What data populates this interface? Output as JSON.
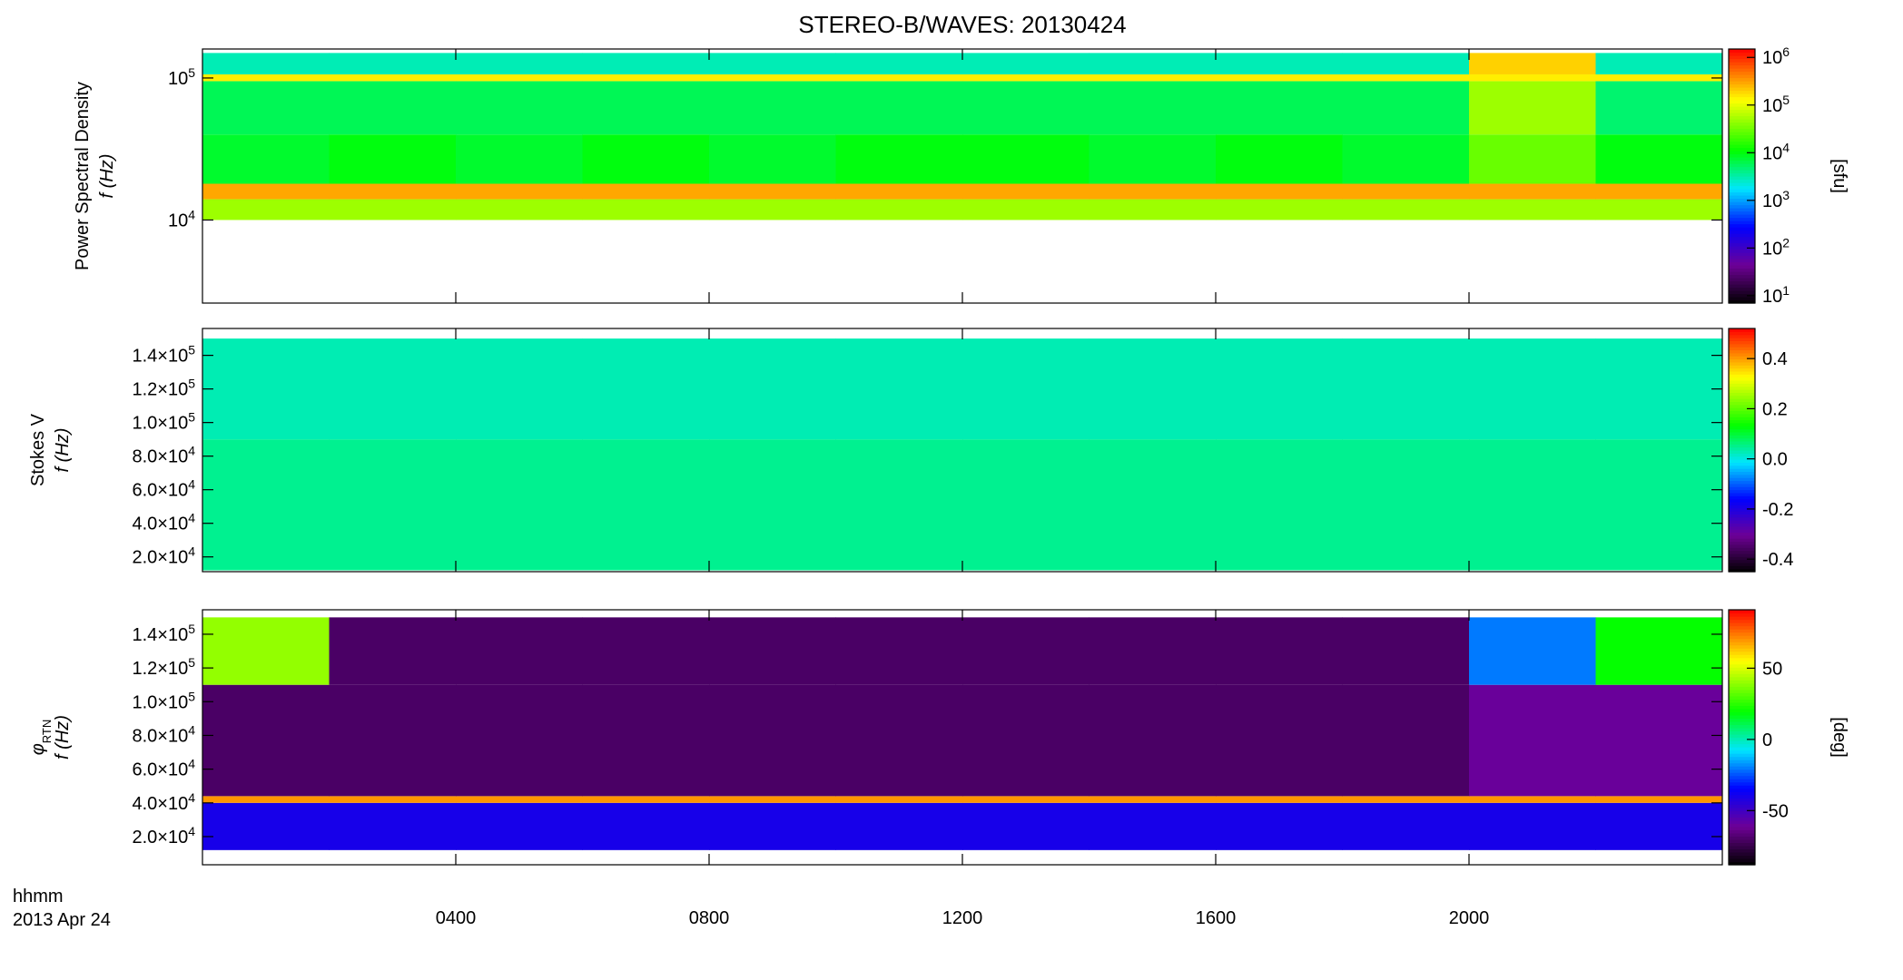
{
  "chart_data": [
    {
      "type": "heatmap",
      "title": "STEREO-B/WAVES: 20130424",
      "ylabel": [
        "Power Spectral Density",
        "f (Hz)"
      ],
      "ylog": true,
      "ylim": [
        2600,
        160000
      ],
      "yticks": [
        {
          "value": 10000,
          "label": "10",
          "sup": "4"
        },
        {
          "value": 100000,
          "label": "10",
          "sup": "5"
        }
      ],
      "x": [
        0,
        2,
        4,
        6,
        8,
        10,
        12,
        14,
        16,
        18,
        20,
        22,
        24
      ],
      "y": [
        10000,
        14000,
        18000,
        40000,
        95000,
        106000,
        150000
      ],
      "z": [
        [
          50000,
          50000,
          50000,
          50000,
          50000,
          50000,
          50000,
          50000,
          50000,
          50000,
          50000,
          50000
        ],
        [
          300000,
          300000,
          300000,
          300000,
          300000,
          300000,
          300000,
          300000,
          300000,
          300000,
          300000,
          300000
        ],
        [
          8000,
          10000,
          8000,
          10000,
          8000,
          10000,
          10000,
          8000,
          10000,
          8000,
          30000,
          10000
        ],
        [
          6000,
          6000,
          6000,
          6000,
          6000,
          6000,
          6000,
          6000,
          6000,
          6000,
          50000,
          5000
        ],
        [
          150000,
          150000,
          150000,
          150000,
          150000,
          150000,
          150000,
          150000,
          150000,
          150000,
          150000,
          150000
        ],
        [
          3000,
          3000,
          3000,
          3000,
          3000,
          3000,
          3000,
          3000,
          3000,
          3000,
          200000,
          3000
        ]
      ],
      "zlog": true,
      "zlim": [
        7,
        1500000
      ],
      "zticks": [
        {
          "value": 10,
          "label": "10",
          "sup": "1"
        },
        {
          "value": 100,
          "label": "10",
          "sup": "2"
        },
        {
          "value": 1000,
          "label": "10",
          "sup": "3"
        },
        {
          "value": 10000,
          "label": "10",
          "sup": "4"
        },
        {
          "value": 100000,
          "label": "10",
          "sup": "5"
        },
        {
          "value": 1000000,
          "label": "10",
          "sup": "6"
        }
      ],
      "zlabel": "[sfu]"
    },
    {
      "type": "heatmap",
      "ylabel": [
        "Stokes V",
        "f (Hz)"
      ],
      "ylim": [
        11200,
        156000
      ],
      "yticks": [
        {
          "value": 20000,
          "label": "2.0×10",
          "sup": "4"
        },
        {
          "value": 40000,
          "label": "4.0×10",
          "sup": "4"
        },
        {
          "value": 60000,
          "label": "6.0×10",
          "sup": "4"
        },
        {
          "value": 80000,
          "label": "8.0×10",
          "sup": "4"
        },
        {
          "value": 100000,
          "label": "1.0×10",
          "sup": "5"
        },
        {
          "value": 120000,
          "label": "1.2×10",
          "sup": "5"
        },
        {
          "value": 140000,
          "label": "1.4×10",
          "sup": "5"
        }
      ],
      "x": [
        0,
        2,
        4,
        6,
        8,
        10,
        12,
        14,
        16,
        18,
        20,
        22,
        24
      ],
      "y": [
        12000,
        90000,
        150000
      ],
      "z": [
        [
          0.05,
          0.05,
          0.05,
          0.05,
          0.05,
          0.05,
          0.05,
          0.05,
          0.05,
          0.05,
          0.05,
          0.05
        ],
        [
          0.03,
          0.03,
          0.03,
          0.03,
          0.03,
          0.03,
          0.03,
          0.03,
          0.03,
          0.03,
          0.03,
          0.03
        ]
      ],
      "zlim": [
        -0.45,
        0.52
      ],
      "zticks": [
        {
          "value": -0.4,
          "label": "-0.4"
        },
        {
          "value": -0.2,
          "label": "-0.2"
        },
        {
          "value": 0.0,
          "label": "0.0"
        },
        {
          "value": 0.2,
          "label": "0.2"
        },
        {
          "value": 0.4,
          "label": "0.4"
        }
      ]
    },
    {
      "type": "heatmap",
      "ylabel": [
        "φ",
        "f (Hz)"
      ],
      "ylabel_sub": "RTN",
      "ylim": [
        3300,
        154500
      ],
      "yticks": [
        {
          "value": 20000,
          "label": "2.0×10",
          "sup": "4"
        },
        {
          "value": 40000,
          "label": "4.0×10",
          "sup": "4"
        },
        {
          "value": 60000,
          "label": "6.0×10",
          "sup": "4"
        },
        {
          "value": 80000,
          "label": "8.0×10",
          "sup": "4"
        },
        {
          "value": 100000,
          "label": "1.0×10",
          "sup": "5"
        },
        {
          "value": 120000,
          "label": "1.2×10",
          "sup": "5"
        },
        {
          "value": 140000,
          "label": "1.4×10",
          "sup": "5"
        }
      ],
      "x": [
        0,
        2,
        4,
        6,
        8,
        10,
        12,
        14,
        16,
        18,
        20,
        22,
        24
      ],
      "y": [
        12000,
        40000,
        44000,
        110000,
        150000
      ],
      "z": [
        [
          -40,
          -40,
          -40,
          -40,
          -40,
          -40,
          -40,
          -40,
          -40,
          -40,
          -40,
          -40
        ],
        [
          70,
          70,
          70,
          70,
          70,
          70,
          70,
          70,
          70,
          70,
          70,
          70
        ],
        [
          -70,
          -70,
          -70,
          -70,
          -70,
          -70,
          -70,
          -70,
          -70,
          -70,
          -60,
          -60
        ],
        [
          40,
          -70,
          -70,
          -70,
          -70,
          -70,
          -70,
          -70,
          -70,
          -70,
          -20,
          20
        ]
      ],
      "zlim": [
        -88,
        91
      ],
      "zticks": [
        -50,
        0,
        50
      ],
      "zlabel": "[deg]",
      "xlim": [
        0,
        24
      ],
      "xticks": [
        {
          "value": 4,
          "label": "0400"
        },
        {
          "value": 8,
          "label": "0800"
        },
        {
          "value": 12,
          "label": "1200"
        },
        {
          "value": 16,
          "label": "1600"
        },
        {
          "value": 20,
          "label": "2000"
        }
      ],
      "xlabel": [
        "hhmm",
        "2013 Apr 24"
      ]
    }
  ]
}
